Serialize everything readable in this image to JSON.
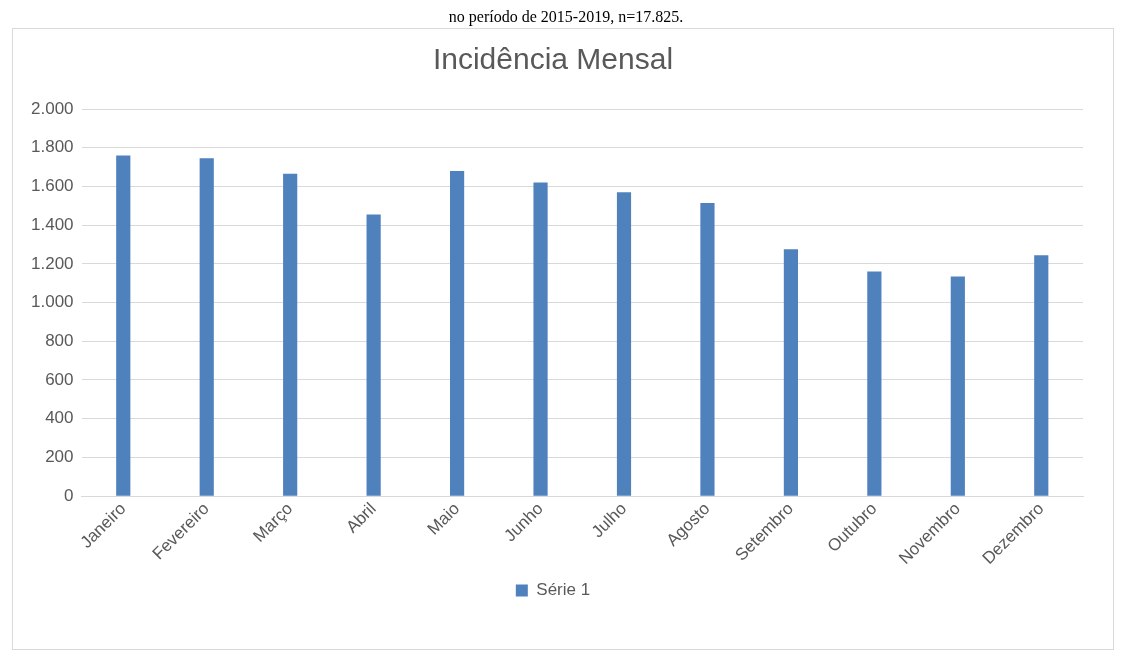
{
  "chart_data": {
    "type": "bar",
    "title": "Incidência Mensal",
    "annotations": [
      "no período de 2015-2019, n=17.825."
    ],
    "categories": [
      "Janeiro",
      "Fevereiro",
      "Março",
      "Abril",
      "Maio",
      "Junho",
      "Julho",
      "Agosto",
      "Setembro",
      "Outubro",
      "Novembro",
      "Dezembro"
    ],
    "series": [
      {
        "name": "Série 1",
        "color": "#4f81bd",
        "values": [
          1760,
          1745,
          1665,
          1455,
          1680,
          1620,
          1570,
          1515,
          1275,
          1160,
          1135,
          1245
        ]
      }
    ],
    "ylim": [
      0,
      2000
    ],
    "yticks": [
      {
        "value": 0,
        "label": "0"
      },
      {
        "value": 200,
        "label": "200"
      },
      {
        "value": 400,
        "label": "400"
      },
      {
        "value": 600,
        "label": "600"
      },
      {
        "value": 800,
        "label": "800"
      },
      {
        "value": 1000,
        "label": "1.000"
      },
      {
        "value": 1200,
        "label": "1.200"
      },
      {
        "value": 1400,
        "label": "1.400"
      },
      {
        "value": 1600,
        "label": "1.600"
      },
      {
        "value": 1800,
        "label": "1.800"
      },
      {
        "value": 2000,
        "label": "2.000"
      }
    ],
    "grid": "y",
    "legend": "bottom"
  }
}
